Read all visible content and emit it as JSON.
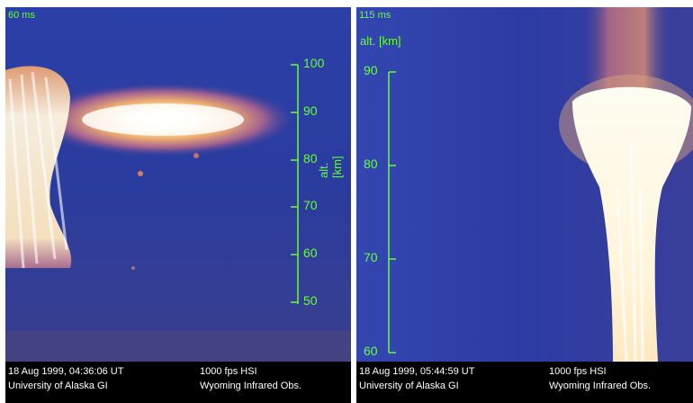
{
  "left_panel": {
    "timestamp": "60 ms",
    "axis_label": "alt. [km]",
    "ticks": [
      "100",
      "90",
      "80",
      "70",
      "60",
      "50"
    ],
    "caption_date": "18 Aug 1999, 04:36:06 UT",
    "caption_org": "University of Alaska GI",
    "caption_camera": "1000 fps HSI",
    "caption_obs": "Wyoming Infrared Obs."
  },
  "right_panel": {
    "timestamp": "115 ms",
    "axis_label": "alt. [km]",
    "ticks": [
      "90",
      "80",
      "70",
      "60"
    ],
    "caption_date": "18 Aug 1999, 05:44:59 UT",
    "caption_org": "University of Alaska GI",
    "caption_camera": "1000 fps HSI",
    "caption_obs": "Wyoming Infrared Obs."
  },
  "colors": {
    "sky": "#2a3a9a",
    "glow": "#fff8e0",
    "overlay_text": "#66ff33"
  }
}
